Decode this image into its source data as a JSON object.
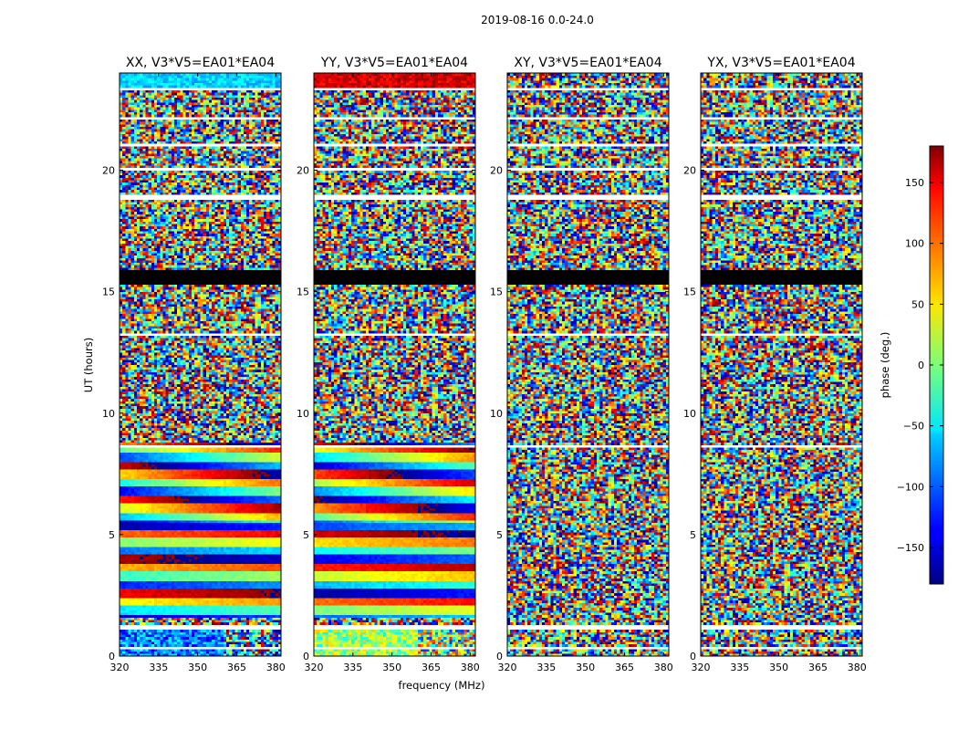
{
  "figure": {
    "suptitle": "2019-08-16 0.0-24.0"
  },
  "chart_data": {
    "type": "heatmap",
    "suptitle": "2019-08-16 0.0-24.0",
    "xlabel": "frequency (MHz)",
    "ylabel": "UT (hours)",
    "xlim": [
      320,
      382
    ],
    "ylim": [
      0,
      24
    ],
    "xticks": [
      "320",
      "335",
      "350",
      "365",
      "380"
    ],
    "yticks": [
      "0",
      "5",
      "10",
      "15",
      "20"
    ],
    "colorbar": {
      "label": "phase (deg.)",
      "colormap": "jet",
      "range": [
        -180,
        180
      ],
      "ticks": [
        "150",
        "100",
        "50",
        "0",
        "−50",
        "−100",
        "−150"
      ],
      "tick_values": [
        150,
        100,
        50,
        0,
        -50,
        -100,
        -150
      ]
    },
    "panels": [
      {
        "title": "XX, V3*V5=EA01*EA04",
        "polarization": "XX",
        "phase_structure": [
          {
            "ut_range": [
              0.0,
              1.1
            ],
            "pattern": "noisy cyan/blue"
          },
          {
            "ut_range": [
              1.6,
              4.0
            ],
            "pattern": "coherent bands red/blue/cyan"
          },
          {
            "ut_range": [
              4.0,
              8.8
            ],
            "pattern": "coherent bands with frequency gradient"
          },
          {
            "ut_range": [
              8.8,
              15.3
            ],
            "pattern": "noise"
          },
          {
            "ut_range": [
              15.3,
              15.9
            ],
            "pattern": "flagged (black)"
          },
          {
            "ut_range": [
              15.9,
              23.3
            ],
            "pattern": "noise"
          },
          {
            "ut_range": [
              23.3,
              24.0
            ],
            "pattern": "coherent blue/cyan"
          }
        ]
      },
      {
        "title": "YY, V3*V5=EA01*EA04",
        "polarization": "YY",
        "phase_structure": [
          {
            "ut_range": [
              0.0,
              1.1
            ],
            "pattern": "noisy green/yellow"
          },
          {
            "ut_range": [
              1.6,
              4.0
            ],
            "pattern": "coherent bands green/yellow/blue"
          },
          {
            "ut_range": [
              4.0,
              8.8
            ],
            "pattern": "coherent bands red/yellow with frequency gradient"
          },
          {
            "ut_range": [
              8.8,
              15.3
            ],
            "pattern": "noise"
          },
          {
            "ut_range": [
              15.3,
              15.9
            ],
            "pattern": "flagged (black)"
          },
          {
            "ut_range": [
              15.9,
              23.3
            ],
            "pattern": "noise"
          },
          {
            "ut_range": [
              23.3,
              24.0
            ],
            "pattern": "coherent red/orange"
          }
        ]
      },
      {
        "title": "XY, V3*V5=EA01*EA04",
        "polarization": "XY",
        "phase_structure": [
          {
            "ut_range": [
              0.0,
              15.3
            ],
            "pattern": "noise"
          },
          {
            "ut_range": [
              15.3,
              15.9
            ],
            "pattern": "flagged (black)"
          },
          {
            "ut_range": [
              15.9,
              24.0
            ],
            "pattern": "noise"
          }
        ]
      },
      {
        "title": "YX, V3*V5=EA01*EA04",
        "polarization": "YX",
        "phase_structure": [
          {
            "ut_range": [
              0.0,
              15.3
            ],
            "pattern": "noise"
          },
          {
            "ut_range": [
              15.3,
              15.9
            ],
            "pattern": "flagged (black)"
          },
          {
            "ut_range": [
              15.9,
              24.0
            ],
            "pattern": "noise"
          }
        ]
      }
    ]
  }
}
